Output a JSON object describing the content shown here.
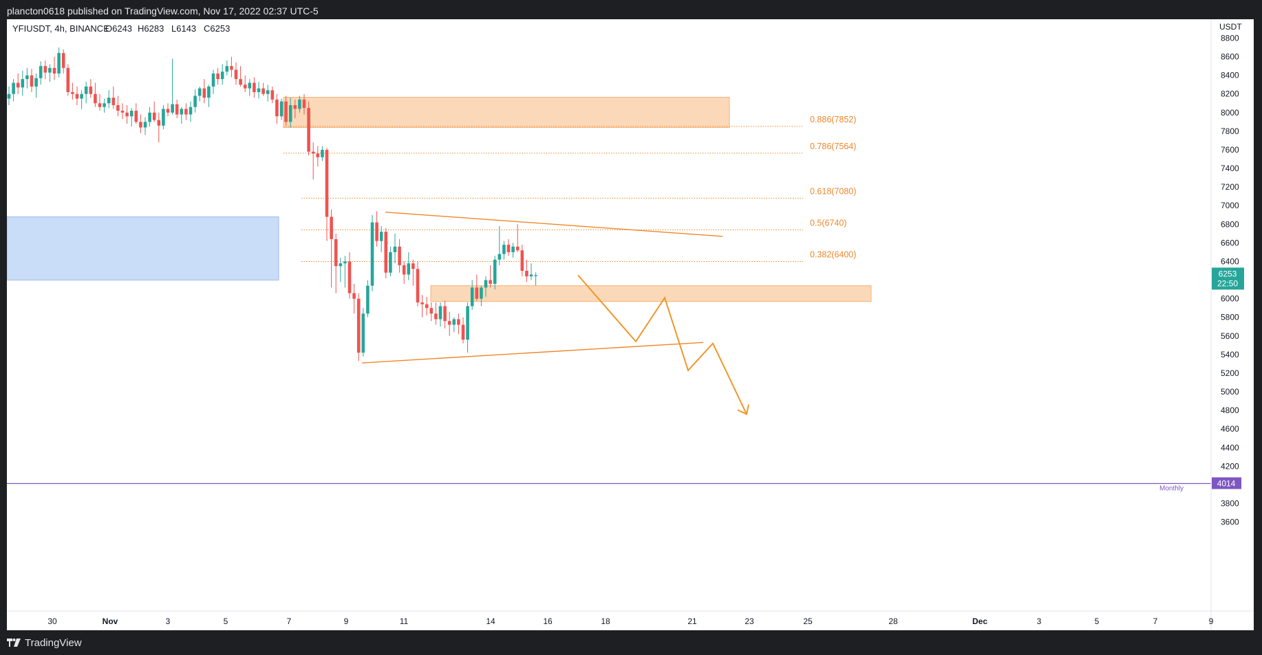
{
  "header": {
    "published_by": "plancton0618 published on TradingView.com, Nov 17, 2022 02:37 UTC-5"
  },
  "footer": {
    "brand": "TradingView"
  },
  "colors": {
    "up": "#26a69a",
    "down": "#ef5350",
    "fib": "#f0862a",
    "supply_zone": "#fbd9b8",
    "demand_zone": "#c9dcf8",
    "monthly": "#7e57c2",
    "last_price": "#26a69a"
  },
  "chart_data": {
    "type": "candlestick",
    "symbol": "YFIUSDT",
    "interval": "4h",
    "exchange": "BINANCE",
    "legend": {
      "symbol_line": "YFIUSDT, 4h, BINANCE",
      "open": "O6243",
      "high": "H6283",
      "low": "L6143",
      "close": "C6253"
    },
    "currency": "USDT",
    "y_ticks": [
      8800,
      8600,
      8400,
      8200,
      8000,
      7800,
      7600,
      7400,
      7200,
      7000,
      6800,
      6600,
      6400,
      6200,
      6000,
      5800,
      5600,
      5400,
      5200,
      5000,
      4800,
      4600,
      4400,
      4200,
      3800,
      3600
    ],
    "x_ticks": [
      "30",
      "Nov",
      "3",
      "5",
      "7",
      "9",
      "11",
      "14",
      "16",
      "18",
      "21",
      "23",
      "25",
      "28",
      "Dec",
      "3",
      "5",
      "7",
      "9"
    ],
    "x_ticks_bold": [
      "Nov",
      "Dec"
    ],
    "last_price": {
      "value": "6253",
      "countdown": "22:50"
    },
    "monthly_level": {
      "label": "Monthly",
      "value": "4014"
    },
    "fib_levels": [
      {
        "label": "0.886(7852)",
        "price": 7852
      },
      {
        "label": "0.786(7564)",
        "price": 7564
      },
      {
        "label": "0.618(7080)",
        "price": 7080
      },
      {
        "label": "0.5(6740)",
        "price": 6740
      },
      {
        "label": "0.382(6400)",
        "price": 6400
      }
    ],
    "zones": [
      {
        "name": "supply",
        "price_top": 8165,
        "price_bottom": 7840
      },
      {
        "name": "demand-upper",
        "price_top": 6140,
        "price_bottom": 5970
      },
      {
        "name": "demand-left",
        "price_top": 6880,
        "price_bottom": 6200
      }
    ],
    "candles_approx": [
      [
        8150,
        8280,
        8080,
        8200
      ],
      [
        8200,
        8360,
        8120,
        8320
      ],
      [
        8320,
        8420,
        8200,
        8270
      ],
      [
        8270,
        8450,
        8180,
        8360
      ],
      [
        8360,
        8480,
        8260,
        8400
      ],
      [
        8400,
        8470,
        8220,
        8280
      ],
      [
        8280,
        8420,
        8160,
        8370
      ],
      [
        8370,
        8550,
        8300,
        8500
      ],
      [
        8500,
        8560,
        8360,
        8430
      ],
      [
        8430,
        8520,
        8330,
        8480
      ],
      [
        8480,
        8600,
        8350,
        8420
      ],
      [
        8420,
        8700,
        8380,
        8640
      ],
      [
        8640,
        8680,
        8420,
        8480
      ],
      [
        8480,
        8520,
        8180,
        8220
      ],
      [
        8220,
        8320,
        8140,
        8200
      ],
      [
        8200,
        8280,
        8080,
        8150
      ],
      [
        8150,
        8240,
        8040,
        8200
      ],
      [
        8200,
        8330,
        8100,
        8280
      ],
      [
        8280,
        8360,
        8160,
        8200
      ],
      [
        8200,
        8320,
        8060,
        8100
      ],
      [
        8100,
        8200,
        8020,
        8060
      ],
      [
        8060,
        8150,
        8000,
        8100
      ],
      [
        8100,
        8240,
        8050,
        8160
      ],
      [
        8160,
        8280,
        8040,
        8080
      ],
      [
        8080,
        8180,
        7960,
        8020
      ],
      [
        8020,
        8100,
        7930,
        8000
      ],
      [
        8000,
        8080,
        7880,
        7960
      ],
      [
        7960,
        8050,
        7850,
        8020
      ],
      [
        8020,
        8100,
        7880,
        7900
      ],
      [
        7900,
        7980,
        7780,
        7840
      ],
      [
        7840,
        7950,
        7760,
        7900
      ],
      [
        7900,
        8060,
        7850,
        8000
      ],
      [
        8000,
        8120,
        7900,
        7920
      ],
      [
        7920,
        8000,
        7680,
        7860
      ],
      [
        7860,
        8080,
        7820,
        8040
      ],
      [
        8040,
        8100,
        7960,
        8000
      ],
      [
        8000,
        8580,
        7980,
        8090
      ],
      [
        8090,
        8140,
        7940,
        7980
      ],
      [
        7980,
        8060,
        7880,
        8040
      ],
      [
        8040,
        8100,
        7920,
        7980
      ],
      [
        7980,
        8120,
        7900,
        8060
      ],
      [
        8060,
        8250,
        8000,
        8180
      ],
      [
        8180,
        8280,
        8120,
        8260
      ],
      [
        8260,
        8360,
        8100,
        8160
      ],
      [
        8160,
        8300,
        8060,
        8280
      ],
      [
        8280,
        8460,
        8200,
        8420
      ],
      [
        8420,
        8480,
        8300,
        8360
      ],
      [
        8360,
        8520,
        8300,
        8440
      ],
      [
        8440,
        8560,
        8400,
        8500
      ],
      [
        8500,
        8600,
        8380,
        8460
      ],
      [
        8460,
        8540,
        8300,
        8360
      ],
      [
        8360,
        8500,
        8280,
        8300
      ],
      [
        8300,
        8400,
        8220,
        8260
      ],
      [
        8260,
        8360,
        8180,
        8320
      ],
      [
        8320,
        8380,
        8160,
        8220
      ],
      [
        8220,
        8330,
        8150,
        8260
      ],
      [
        8260,
        8320,
        8180,
        8200
      ],
      [
        8200,
        8300,
        8120,
        8240
      ],
      [
        8240,
        8280,
        8100,
        8140
      ],
      [
        8140,
        8200,
        7880,
        7960
      ],
      [
        7960,
        8150,
        7920,
        8120
      ],
      [
        8120,
        8180,
        7860,
        7900
      ],
      [
        7900,
        8160,
        7840,
        8080
      ],
      [
        8080,
        8140,
        7940,
        8040
      ],
      [
        8040,
        8180,
        8000,
        8140
      ],
      [
        8140,
        8200,
        7980,
        8050
      ],
      [
        8050,
        8120,
        7540,
        7580
      ],
      [
        7580,
        7680,
        7280,
        7560
      ],
      [
        7560,
        7640,
        7420,
        7520
      ],
      [
        7520,
        7640,
        7480,
        7600
      ],
      [
        7600,
        7620,
        6620,
        6880
      ],
      [
        6880,
        6960,
        6120,
        6640
      ],
      [
        6640,
        6700,
        6060,
        6350
      ],
      [
        6350,
        6440,
        6180,
        6380
      ],
      [
        6380,
        6460,
        6120,
        6400
      ],
      [
        6400,
        6500,
        6000,
        6060
      ],
      [
        6060,
        6160,
        5840,
        6000
      ],
      [
        6000,
        6060,
        5330,
        5420
      ],
      [
        5420,
        5900,
        5380,
        5840
      ],
      [
        5840,
        6200,
        5800,
        6140
      ],
      [
        6140,
        6900,
        6080,
        6820
      ],
      [
        6820,
        6940,
        6560,
        6620
      ],
      [
        6620,
        6780,
        6500,
        6720
      ],
      [
        6720,
        6760,
        6220,
        6280
      ],
      [
        6280,
        6560,
        6240,
        6500
      ],
      [
        6500,
        6700,
        6380,
        6560
      ],
      [
        6560,
        6640,
        6280,
        6360
      ],
      [
        6360,
        6400,
        6160,
        6260
      ],
      [
        6260,
        6500,
        6200,
        6380
      ],
      [
        6380,
        6420,
        6140,
        6320
      ],
      [
        6320,
        6400,
        5920,
        5960
      ],
      [
        5960,
        6040,
        5800,
        5940
      ],
      [
        5940,
        6020,
        5820,
        5900
      ],
      [
        5900,
        5960,
        5760,
        5840
      ],
      [
        5840,
        5960,
        5720,
        5780
      ],
      [
        5780,
        5960,
        5700,
        5920
      ],
      [
        5920,
        5980,
        5680,
        5760
      ],
      [
        5760,
        5860,
        5600,
        5720
      ],
      [
        5720,
        5800,
        5640,
        5780
      ],
      [
        5780,
        5840,
        5620,
        5720
      ],
      [
        5720,
        5800,
        5520,
        5560
      ],
      [
        5560,
        5960,
        5420,
        5920
      ],
      [
        5920,
        6200,
        5880,
        6120
      ],
      [
        6120,
        6260,
        5980,
        6000
      ],
      [
        6000,
        6140,
        5920,
        6120
      ],
      [
        6120,
        6240,
        6020,
        6200
      ],
      [
        6200,
        6360,
        6120,
        6160
      ],
      [
        6160,
        6460,
        6100,
        6420
      ],
      [
        6420,
        6780,
        6360,
        6480
      ],
      [
        6480,
        6620,
        6420,
        6580
      ],
      [
        6580,
        6640,
        6460,
        6500
      ],
      [
        6500,
        6600,
        6440,
        6560
      ],
      [
        6560,
        6800,
        6500,
        6520
      ],
      [
        6520,
        6580,
        6240,
        6300
      ],
      [
        6300,
        6420,
        6180,
        6240
      ],
      [
        6240,
        6380,
        6200,
        6260
      ],
      [
        6243,
        6283,
        6143,
        6253
      ]
    ],
    "projection_path": [
      [
        6253
      ],
      [
        5540
      ],
      [
        6010
      ],
      [
        5230
      ],
      [
        5520
      ],
      [
        4760
      ]
    ],
    "trendlines": [
      {
        "name": "triangle-upper",
        "from_price": 6930,
        "to_price": 6670
      },
      {
        "name": "triangle-lower",
        "from_price": 5310,
        "to_price": 5530
      }
    ]
  }
}
